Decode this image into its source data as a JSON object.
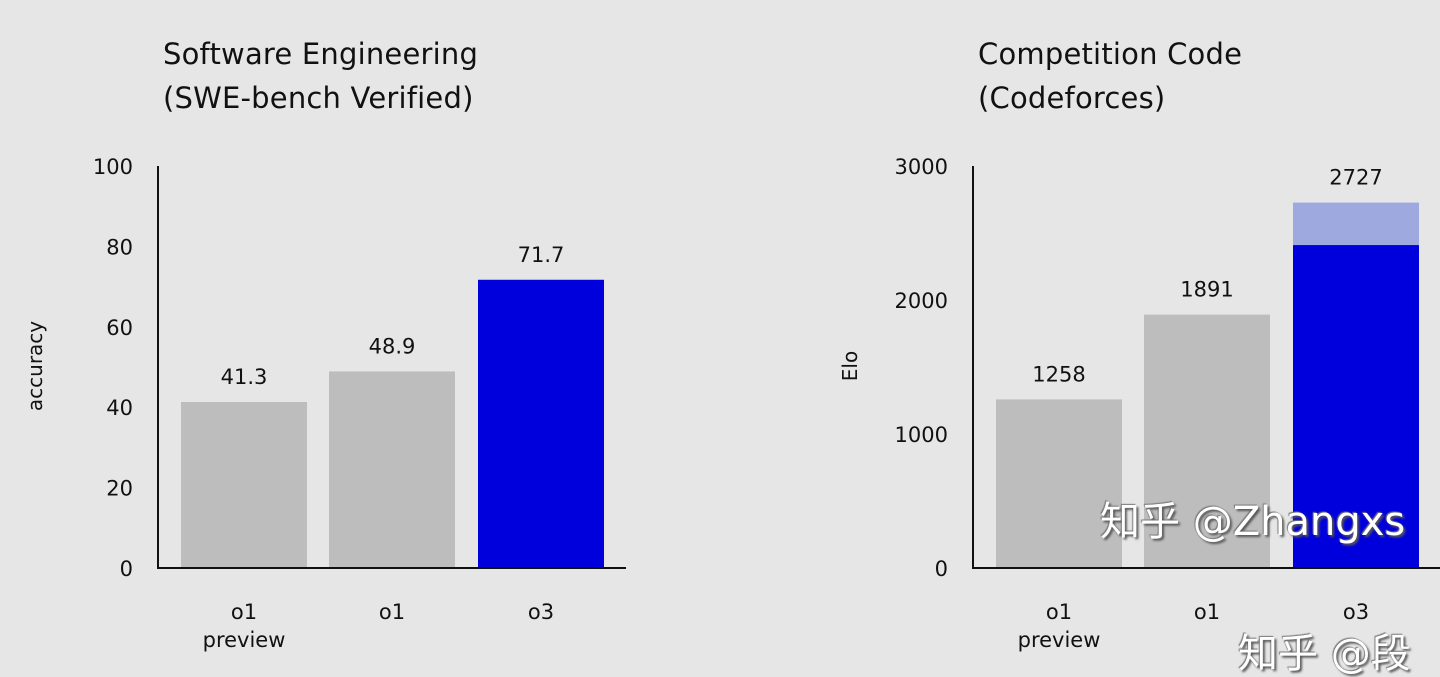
{
  "chart_data": [
    {
      "type": "bar",
      "title": [
        "Software Engineering",
        "(SWE-bench Verified)"
      ],
      "xlabel": "",
      "ylabel": "accuracy",
      "ylim": [
        0,
        100
      ],
      "yticks": [
        0,
        20,
        40,
        60,
        80,
        100
      ],
      "categories": [
        [
          "o1",
          "preview"
        ],
        [
          "o1"
        ],
        [
          "o3"
        ]
      ],
      "values": [
        41.3,
        48.9,
        71.7
      ],
      "data_labels": [
        "41.3",
        "48.9",
        "71.7"
      ],
      "colors": [
        "#bdbdbd",
        "#bdbdbd",
        "#0000dd"
      ],
      "grid": false
    },
    {
      "type": "bar",
      "title": [
        "Competition Code",
        "(Codeforces)"
      ],
      "xlabel": "",
      "ylabel": "Elo",
      "ylim": [
        0,
        3000
      ],
      "yticks": [
        0,
        1000,
        2000,
        3000
      ],
      "categories": [
        [
          "o1",
          "preview"
        ],
        [
          "o1"
        ],
        [
          "o3"
        ]
      ],
      "values": [
        1258,
        1891,
        2727
      ],
      "solid_portion": [
        1258,
        1891,
        2410
      ],
      "data_labels": [
        "1258",
        "1891",
        "2727"
      ],
      "colors": [
        "#bdbdbd",
        "#bdbdbd",
        "#0000dd"
      ],
      "highlight_color": "#9ea9e0",
      "grid": false
    }
  ],
  "watermarks": [
    "知乎 @Zhangxs",
    "知乎 @段"
  ]
}
